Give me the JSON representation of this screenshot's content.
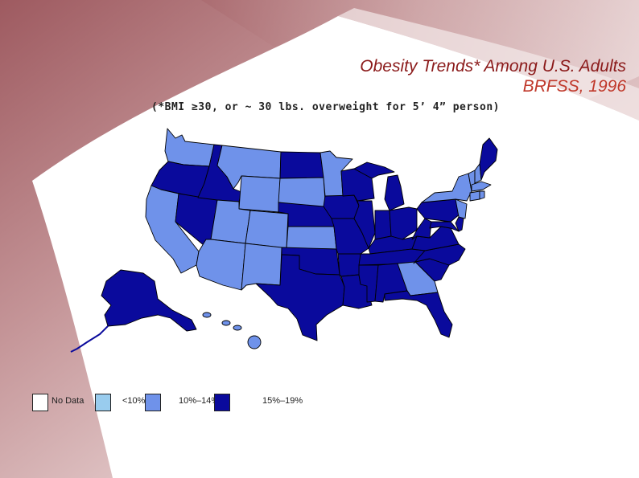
{
  "title": {
    "line1": "Obesity Trends* Among U.S. Adults",
    "line2": "BRFSS, 1996"
  },
  "subtitle": "(*BMI ≥30, or ~ 30 lbs. overweight for 5’ 4” person)",
  "colors": {
    "no_data": "#ffffff",
    "lt10": "#99ccee",
    "c10_14": "#6f92ea",
    "c15_19": "#0a0a9c",
    "title_dark": "#8b1a1a",
    "title_red": "#c0392b"
  },
  "legend": [
    {
      "label": "No Data",
      "category": "no_data"
    },
    {
      "label": "<10%",
      "category": "lt10"
    },
    {
      "label": "10%–14%",
      "category": "c10_14"
    },
    {
      "label": "15%–19%",
      "category": "c15_19"
    }
  ],
  "states": {
    "WA": "c10_14",
    "OR": "c15_19",
    "CA": "c10_14",
    "ID": "c15_19",
    "NV": "c15_19",
    "MT": "c10_14",
    "WY": "c10_14",
    "UT": "c10_14",
    "AZ": "c10_14",
    "CO": "c10_14",
    "NM": "c10_14",
    "ND": "c15_19",
    "SD": "c10_14",
    "NE": "c15_19",
    "KS": "c10_14",
    "OK": "c15_19",
    "TX": "c15_19",
    "MN": "c10_14",
    "IA": "c15_19",
    "MO": "c15_19",
    "AR": "c15_19",
    "LA": "c15_19",
    "WI": "c15_19",
    "IL": "c15_19",
    "MI": "c15_19",
    "IN": "c15_19",
    "OH": "c15_19",
    "KY": "c15_19",
    "TN": "c15_19",
    "MS": "c15_19",
    "AL": "c15_19",
    "GA": "c10_14",
    "FL": "c15_19",
    "SC": "c15_19",
    "NC": "c15_19",
    "VA": "c15_19",
    "WV": "c15_19",
    "PA": "c15_19",
    "NY": "c10_14",
    "ME": "c15_19",
    "VT": "c10_14",
    "NH": "c10_14",
    "MA": "c10_14",
    "CT": "c10_14",
    "RI": "c10_14",
    "NJ": "c10_14",
    "DE": "c15_19",
    "MD": "c15_19",
    "AK": "c15_19",
    "HI": "c10_14"
  }
}
